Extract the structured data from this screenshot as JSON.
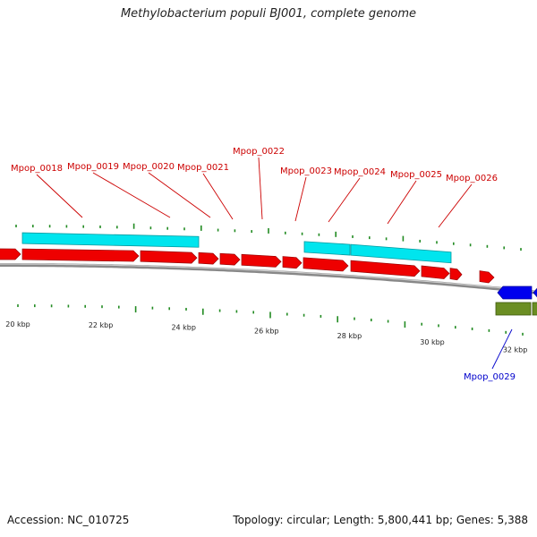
{
  "title": "Methylobacterium populi BJ001, complete genome",
  "footer": {
    "accession": "Accession: NC_010725",
    "summary": "Topology: circular; Length: 5,800,441 bp; Genes: 5,388"
  },
  "colors": {
    "forward_gene": "#ee0000",
    "reverse_gene": "#0000ee",
    "feature_cyan": "#00e5ee",
    "feature_olive": "#6b8e23",
    "tick": "#228b22",
    "backbone": "#888888",
    "label_forward": "#cc0000",
    "label_reverse": "#0000cc"
  },
  "axis": {
    "unit": "kbp",
    "ticks": [
      {
        "kbp": 20,
        "label": "20 kbp"
      },
      {
        "kbp": 22,
        "label": "22 kbp"
      },
      {
        "kbp": 24,
        "label": "24 kbp"
      },
      {
        "kbp": 26,
        "label": "26 kbp"
      },
      {
        "kbp": 28,
        "label": "28 kbp"
      },
      {
        "kbp": 30,
        "label": "30 kbp"
      },
      {
        "kbp": 32,
        "label": "32 kbp"
      }
    ]
  },
  "gene_labels_forward": [
    "Mpop_0018",
    "Mpop_0019",
    "Mpop_0020",
    "Mpop_0021",
    "Mpop_0022",
    "Mpop_0023",
    "Mpop_0024",
    "Mpop_0025",
    "Mpop_0026"
  ],
  "gene_labels_reverse": [
    "Mpop_0029"
  ]
}
